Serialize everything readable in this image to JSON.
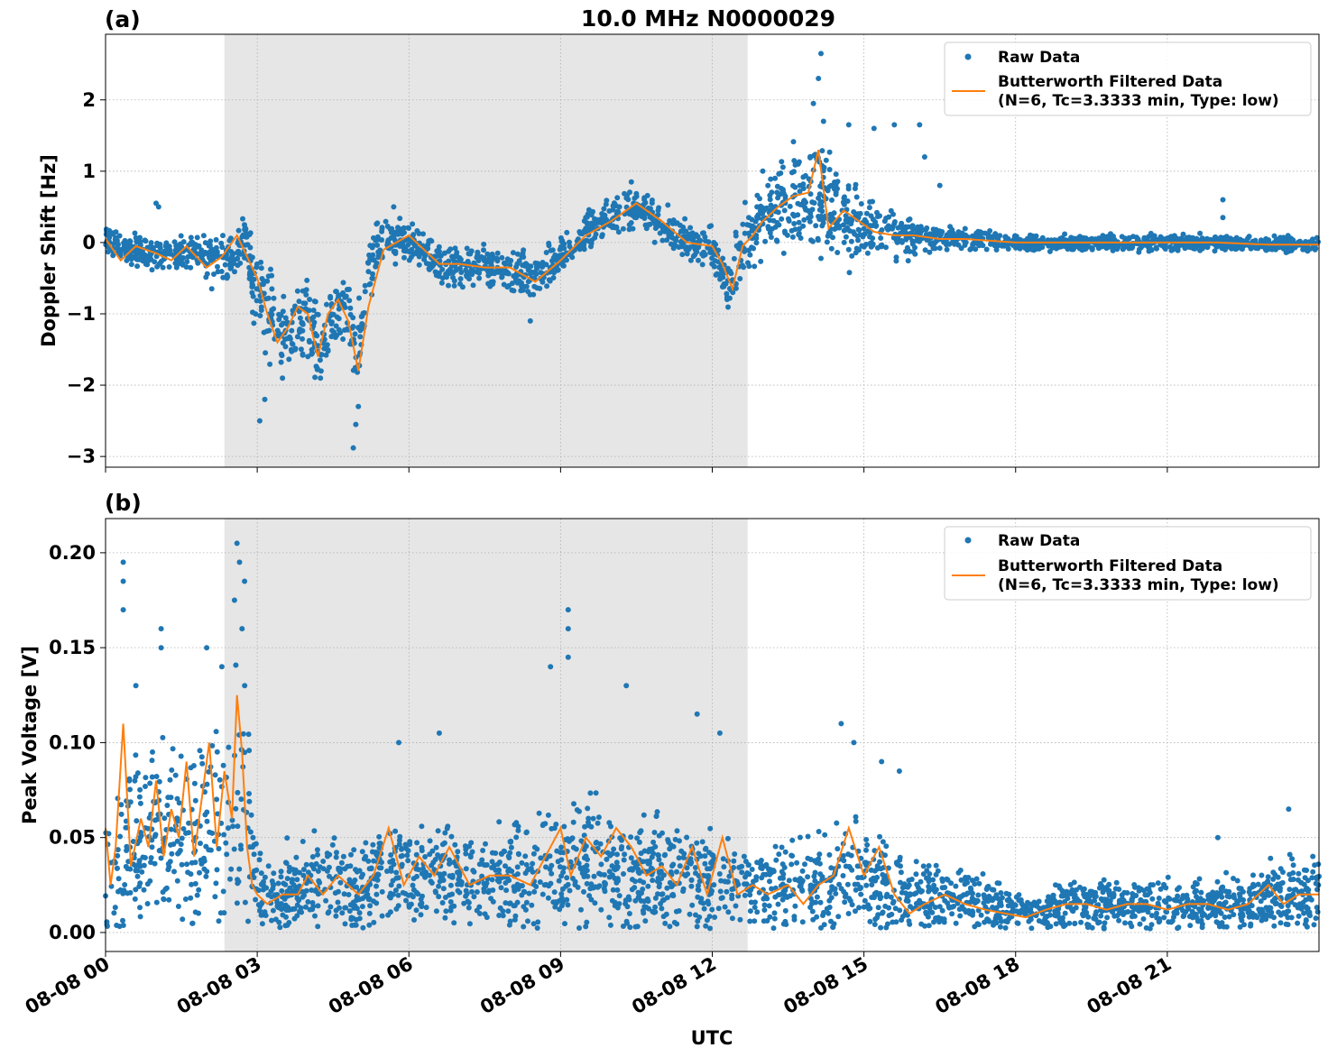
{
  "figure": {
    "title": "10.0 MHz N0000029",
    "xlabel": "UTC",
    "xlim_hours": [
      0,
      24
    ],
    "x_tick_labels": [
      "08-08 00",
      "08-08 03",
      "08-08 06",
      "08-08 09",
      "08-08 12",
      "08-08 15",
      "08-08 18",
      "08-08 21"
    ],
    "x_tick_hours": [
      0,
      3,
      6,
      9,
      12,
      15,
      18,
      21
    ],
    "shaded_interval_hours": [
      2.35,
      12.7
    ],
    "colors": {
      "raw": "#1f77b4",
      "filtered": "#ff7f0e",
      "shade": "#e6e6e6",
      "grid": "#b0b0b0"
    },
    "legend": {
      "raw_label": "Raw Data",
      "filtered_label_line1": "Butterworth Filtered Data",
      "filtered_label_line2": "(N=6, Tc=3.3333 min, Type: low)",
      "placement": "upper right"
    }
  },
  "chart_data": [
    {
      "panel_label": "(a)",
      "type": "scatter",
      "ylabel": "Doppler Shift [Hz]",
      "ylim": [
        -3.15,
        2.92
      ],
      "y_ticks": [
        -3,
        -2,
        -1,
        0,
        1,
        2
      ],
      "y_tick_labels": [
        "−3",
        "−2",
        "−1",
        "0",
        "1",
        "2"
      ],
      "grid": true,
      "series": [
        {
          "name": "Raw Data",
          "kind": "scatter",
          "x_hours": [
            0,
            0.5,
            1.0,
            1.5,
            2.0,
            2.5,
            2.75,
            3.0,
            3.25,
            3.5,
            3.75,
            4.0,
            4.25,
            4.5,
            4.75,
            4.95,
            5.2,
            5.5,
            6.0,
            6.5,
            7.0,
            7.5,
            8.0,
            8.5,
            9.0,
            9.5,
            10.0,
            10.5,
            11.0,
            11.5,
            12.0,
            12.3,
            12.6,
            13.0,
            13.5,
            14.0,
            14.5,
            15.0,
            15.5,
            16.0,
            16.5,
            17.0,
            18.0,
            19.0,
            20.0,
            21.0,
            22.0,
            23.0,
            24.0
          ],
          "y": [
            0.05,
            -0.1,
            -0.2,
            -0.15,
            -0.2,
            -0.2,
            0.0,
            -0.6,
            -1.0,
            -1.3,
            -1.2,
            -1.1,
            -1.5,
            -1.0,
            -0.9,
            -1.7,
            -0.4,
            0.1,
            0.0,
            -0.3,
            -0.35,
            -0.3,
            -0.45,
            -0.5,
            -0.2,
            0.15,
            0.35,
            0.5,
            0.25,
            0.0,
            -0.1,
            -0.7,
            0.0,
            0.35,
            0.6,
            0.7,
            0.35,
            0.2,
            0.1,
            0.1,
            0.05,
            0.05,
            0.0,
            0.0,
            0.0,
            0.0,
            0.0,
            -0.03,
            -0.03
          ],
          "spread": [
            0.15,
            0.15,
            0.2,
            0.2,
            0.2,
            0.2,
            0.3,
            0.5,
            0.5,
            0.4,
            0.35,
            0.4,
            0.4,
            0.35,
            0.4,
            0.5,
            0.3,
            0.25,
            0.2,
            0.2,
            0.2,
            0.2,
            0.22,
            0.22,
            0.2,
            0.2,
            0.2,
            0.2,
            0.2,
            0.2,
            0.2,
            0.25,
            0.3,
            0.35,
            0.5,
            0.6,
            0.5,
            0.3,
            0.25,
            0.2,
            0.15,
            0.1,
            0.08,
            0.08,
            0.08,
            0.08,
            0.08,
            0.08,
            0.08
          ],
          "outliers": [
            [
              1.0,
              0.55
            ],
            [
              1.05,
              0.5
            ],
            [
              2.1,
              -0.65
            ],
            [
              2.4,
              -0.5
            ],
            [
              3.05,
              -2.5
            ],
            [
              3.15,
              -2.2
            ],
            [
              3.5,
              -1.9
            ],
            [
              4.0,
              -1.6
            ],
            [
              4.25,
              -1.9
            ],
            [
              4.9,
              -2.88
            ],
            [
              4.95,
              -2.55
            ],
            [
              5.0,
              -2.3
            ],
            [
              5.7,
              0.5
            ],
            [
              8.4,
              -1.1
            ],
            [
              10.4,
              0.85
            ],
            [
              13.0,
              1.0
            ],
            [
              13.7,
              1.1
            ],
            [
              14.0,
              1.95
            ],
            [
              14.1,
              2.3
            ],
            [
              14.15,
              2.65
            ],
            [
              14.2,
              1.7
            ],
            [
              14.7,
              1.65
            ],
            [
              15.2,
              1.6
            ],
            [
              15.6,
              1.65
            ],
            [
              16.1,
              1.65
            ],
            [
              16.2,
              1.2
            ],
            [
              16.5,
              0.8
            ],
            [
              22.1,
              0.6
            ],
            [
              22.1,
              0.35
            ]
          ]
        },
        {
          "name": "Butterworth Filtered Data",
          "kind": "line",
          "x_hours": [
            0,
            0.3,
            0.6,
            1.0,
            1.3,
            1.6,
            2.0,
            2.3,
            2.6,
            2.8,
            3.0,
            3.2,
            3.4,
            3.6,
            3.8,
            4.0,
            4.2,
            4.4,
            4.6,
            4.8,
            5.0,
            5.2,
            5.5,
            6.0,
            6.3,
            6.6,
            7.0,
            7.5,
            8.0,
            8.5,
            9.0,
            9.5,
            10.0,
            10.5,
            11.0,
            11.5,
            12.0,
            12.2,
            12.4,
            12.6,
            12.8,
            13.0,
            13.3,
            13.6,
            13.9,
            14.1,
            14.3,
            14.6,
            14.9,
            15.2,
            15.6,
            16.0,
            16.5,
            17.0,
            18.0,
            19.0,
            20.0,
            21.0,
            22.0,
            23.0,
            24.0
          ],
          "y": [
            0.05,
            -0.25,
            -0.05,
            -0.15,
            -0.25,
            -0.05,
            -0.35,
            -0.2,
            0.1,
            -0.2,
            -0.5,
            -1.0,
            -1.4,
            -1.2,
            -0.9,
            -1.0,
            -1.6,
            -1.0,
            -0.8,
            -1.1,
            -1.8,
            -0.9,
            -0.1,
            0.1,
            -0.1,
            -0.3,
            -0.3,
            -0.35,
            -0.35,
            -0.55,
            -0.25,
            0.1,
            0.3,
            0.55,
            0.3,
            0.0,
            -0.05,
            -0.3,
            -0.65,
            -0.05,
            0.1,
            0.3,
            0.5,
            0.65,
            0.7,
            1.3,
            0.2,
            0.45,
            0.3,
            0.15,
            0.1,
            0.1,
            0.05,
            0.05,
            0.0,
            0.0,
            0.0,
            0.0,
            0.0,
            -0.03,
            -0.03
          ]
        }
      ]
    },
    {
      "panel_label": "(b)",
      "type": "scatter",
      "ylabel": "Peak Voltage [V]",
      "ylim": [
        -0.01,
        0.218
      ],
      "y_ticks": [
        0.0,
        0.05,
        0.1,
        0.15,
        0.2
      ],
      "y_tick_labels": [
        "0.00",
        "0.05",
        "0.10",
        "0.15",
        "0.20"
      ],
      "grid": true,
      "series": [
        {
          "name": "Raw Data",
          "kind": "scatter",
          "x_hours": [
            0,
            0.5,
            1.0,
            1.5,
            2.0,
            2.3,
            2.6,
            2.8,
            3.0,
            3.5,
            4.0,
            4.5,
            5.0,
            5.5,
            6.0,
            6.5,
            7.0,
            7.5,
            8.0,
            8.5,
            9.0,
            9.5,
            10.0,
            10.5,
            11.0,
            11.5,
            12.0,
            12.5,
            13.0,
            13.5,
            14.0,
            14.5,
            15.0,
            15.5,
            16.0,
            16.5,
            17.0,
            17.5,
            18.0,
            18.5,
            19.0,
            19.5,
            20.0,
            20.5,
            21.0,
            21.5,
            22.0,
            22.5,
            23.0,
            23.5,
            24.0
          ],
          "y": [
            0.03,
            0.045,
            0.05,
            0.05,
            0.055,
            0.06,
            0.08,
            0.06,
            0.02,
            0.02,
            0.025,
            0.025,
            0.02,
            0.035,
            0.03,
            0.03,
            0.03,
            0.03,
            0.03,
            0.03,
            0.035,
            0.04,
            0.035,
            0.03,
            0.03,
            0.03,
            0.025,
            0.025,
            0.025,
            0.025,
            0.025,
            0.03,
            0.03,
            0.02,
            0.02,
            0.02,
            0.02,
            0.015,
            0.01,
            0.012,
            0.015,
            0.015,
            0.015,
            0.015,
            0.015,
            0.015,
            0.015,
            0.015,
            0.02,
            0.02,
            0.02
          ],
          "spread": [
            0.025,
            0.035,
            0.035,
            0.035,
            0.04,
            0.04,
            0.06,
            0.045,
            0.015,
            0.015,
            0.017,
            0.017,
            0.017,
            0.02,
            0.02,
            0.02,
            0.02,
            0.018,
            0.02,
            0.022,
            0.025,
            0.025,
            0.025,
            0.022,
            0.022,
            0.02,
            0.018,
            0.016,
            0.016,
            0.016,
            0.016,
            0.02,
            0.02,
            0.016,
            0.015,
            0.013,
            0.012,
            0.01,
            0.008,
            0.008,
            0.01,
            0.01,
            0.01,
            0.01,
            0.01,
            0.01,
            0.01,
            0.01,
            0.012,
            0.014,
            0.014
          ],
          "outliers": [
            [
              0.35,
              0.195
            ],
            [
              0.35,
              0.185
            ],
            [
              0.35,
              0.17
            ],
            [
              1.1,
              0.16
            ],
            [
              1.1,
              0.15
            ],
            [
              0.6,
              0.13
            ],
            [
              2.0,
              0.15
            ],
            [
              2.6,
              0.205
            ],
            [
              2.65,
              0.195
            ],
            [
              2.75,
              0.185
            ],
            [
              2.55,
              0.175
            ],
            [
              2.7,
              0.16
            ],
            [
              2.3,
              0.14
            ],
            [
              5.8,
              0.1
            ],
            [
              6.6,
              0.105
            ],
            [
              8.8,
              0.14
            ],
            [
              9.15,
              0.17
            ],
            [
              9.15,
              0.16
            ],
            [
              9.15,
              0.145
            ],
            [
              10.3,
              0.13
            ],
            [
              11.7,
              0.115
            ],
            [
              12.15,
              0.105
            ],
            [
              14.55,
              0.11
            ],
            [
              14.8,
              0.1
            ],
            [
              15.35,
              0.09
            ],
            [
              15.7,
              0.085
            ],
            [
              22.0,
              0.05
            ],
            [
              23.4,
              0.065
            ]
          ]
        },
        {
          "name": "Butterworth Filtered Data",
          "kind": "line",
          "x_hours": [
            0,
            0.1,
            0.2,
            0.35,
            0.5,
            0.7,
            0.85,
            1.0,
            1.15,
            1.3,
            1.45,
            1.6,
            1.75,
            1.9,
            2.05,
            2.2,
            2.35,
            2.5,
            2.6,
            2.7,
            2.8,
            2.9,
            3.0,
            3.2,
            3.5,
            3.8,
            4.0,
            4.3,
            4.6,
            5.0,
            5.3,
            5.6,
            5.9,
            6.2,
            6.5,
            6.8,
            7.2,
            7.6,
            8.0,
            8.4,
            8.7,
            9.0,
            9.2,
            9.5,
            9.8,
            10.1,
            10.4,
            10.7,
            11.0,
            11.3,
            11.6,
            11.9,
            12.2,
            12.5,
            12.8,
            13.1,
            13.5,
            13.8,
            14.1,
            14.4,
            14.7,
            15.0,
            15.3,
            15.6,
            15.9,
            16.2,
            16.6,
            17.0,
            17.4,
            17.8,
            18.2,
            18.6,
            19.0,
            19.4,
            19.8,
            20.2,
            20.6,
            21.0,
            21.4,
            21.8,
            22.2,
            22.6,
            23.0,
            23.3,
            23.6,
            24.0
          ],
          "y": [
            0.055,
            0.025,
            0.045,
            0.11,
            0.035,
            0.06,
            0.045,
            0.08,
            0.04,
            0.065,
            0.05,
            0.09,
            0.04,
            0.07,
            0.1,
            0.045,
            0.085,
            0.06,
            0.125,
            0.095,
            0.045,
            0.025,
            0.02,
            0.015,
            0.02,
            0.02,
            0.03,
            0.02,
            0.03,
            0.02,
            0.03,
            0.055,
            0.025,
            0.04,
            0.03,
            0.045,
            0.025,
            0.03,
            0.03,
            0.025,
            0.04,
            0.055,
            0.03,
            0.05,
            0.04,
            0.055,
            0.045,
            0.03,
            0.035,
            0.025,
            0.045,
            0.02,
            0.05,
            0.02,
            0.025,
            0.02,
            0.025,
            0.015,
            0.025,
            0.03,
            0.055,
            0.03,
            0.045,
            0.02,
            0.01,
            0.015,
            0.02,
            0.015,
            0.012,
            0.01,
            0.008,
            0.012,
            0.015,
            0.015,
            0.012,
            0.015,
            0.015,
            0.012,
            0.015,
            0.015,
            0.012,
            0.015,
            0.025,
            0.015,
            0.02,
            0.02
          ]
        }
      ]
    }
  ]
}
